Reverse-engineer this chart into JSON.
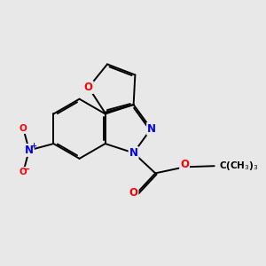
{
  "bg_color": "#e8e8e8",
  "bond_color": "#000000",
  "bond_width": 1.4,
  "atom_colors": {
    "N": "#0000ff",
    "O": "#ff0000",
    "C": "#000000"
  },
  "font_size": 8.5
}
